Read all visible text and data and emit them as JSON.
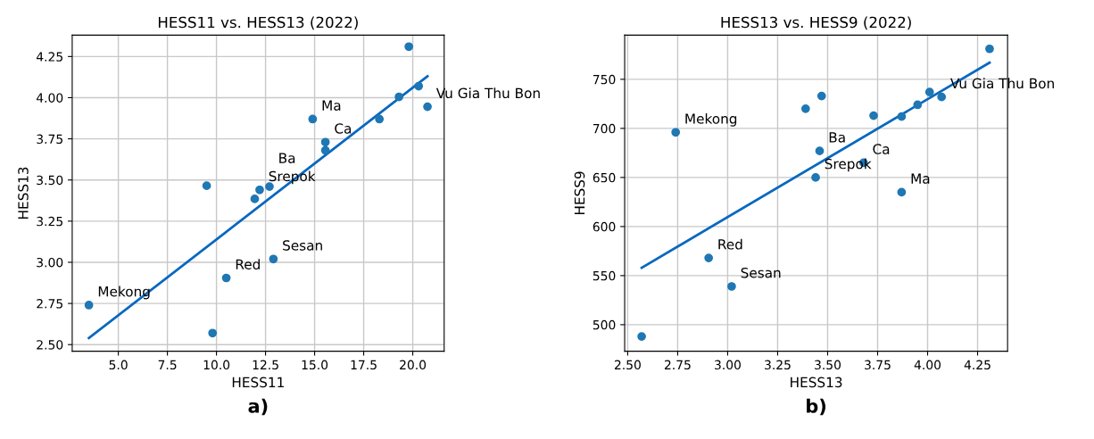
{
  "chart_data": [
    {
      "type": "scatter",
      "title": "HESS11 vs. HESS13 (2022)",
      "xlabel": "HESS11",
      "ylabel": "HESS13",
      "grid": true,
      "marker": "circle",
      "xlim": [
        2.65,
        21.6
      ],
      "ylim": [
        2.46,
        4.38
      ],
      "xticks": [
        {
          "value": 5,
          "label": "5.0"
        },
        7.5,
        {
          "value": 10,
          "label": "10.0"
        },
        12.5,
        {
          "value": 15,
          "label": "15.0"
        },
        17.5,
        {
          "value": 20,
          "label": "20.0"
        }
      ],
      "yticks": [
        {
          "value": 2.5,
          "label": "2.50"
        },
        {
          "value": 2.75,
          "label": "2.75"
        },
        {
          "value": 3.0,
          "label": "3.00"
        },
        {
          "value": 3.25,
          "label": "3.25"
        },
        {
          "value": 3.5,
          "label": "3.50"
        },
        {
          "value": 3.75,
          "label": "3.75"
        },
        {
          "value": 4.0,
          "label": "4.00"
        },
        {
          "value": 4.25,
          "label": "4.25"
        }
      ],
      "series": [
        {
          "color": "#1f77b4",
          "x": [
            3.5,
            9.8,
            10.5,
            12.9,
            9.5,
            11.95,
            12.2,
            12.7,
            14.9,
            15.55,
            15.55,
            18.3,
            19.3,
            19.8,
            20.3,
            20.75
          ],
          "values": [
            2.74,
            2.57,
            2.905,
            3.02,
            3.465,
            3.385,
            3.44,
            3.46,
            3.87,
            3.73,
            3.68,
            3.87,
            4.005,
            4.31,
            4.07,
            3.945
          ]
        },
        {
          "type": "line",
          "color": "#0868c0",
          "marker": "none",
          "x": [
            3.5,
            20.75
          ],
          "values": [
            2.54,
            4.13
          ]
        }
      ],
      "annotations": [
        {
          "text": "Mekong",
          "x": 3.5,
          "y": 2.74
        },
        {
          "text": "Red",
          "x": 10.5,
          "y": 2.905
        },
        {
          "text": "Sesan",
          "x": 12.9,
          "y": 3.02
        },
        {
          "text": "Srepok",
          "x": 12.2,
          "y": 3.44
        },
        {
          "text": "Ba",
          "x": 12.7,
          "y": 3.46
        },
        {
          "text": "Ma",
          "x": 14.9,
          "y": 3.87
        },
        {
          "text": "Ca",
          "x": 15.55,
          "y": 3.73
        },
        {
          "text": "Vu Gia Thu Bon",
          "x": 20.75,
          "y": 3.945
        },
        "a)"
      ]
    },
    {
      "type": "scatter",
      "title": "HESS13 vs. HESS9 (2022)",
      "xlabel": "HESS13",
      "ylabel": "HESS9",
      "grid": true,
      "marker": "circle",
      "xlim": [
        2.485,
        4.4
      ],
      "ylim": [
        473,
        795
      ],
      "xticks": [
        {
          "value": 2.5,
          "label": "2.50"
        },
        {
          "value": 2.75,
          "label": "2.75"
        },
        {
          "value": 3.0,
          "label": "3.00"
        },
        {
          "value": 3.25,
          "label": "3.25"
        },
        {
          "value": 3.5,
          "label": "3.50"
        },
        {
          "value": 3.75,
          "label": "3.75"
        },
        {
          "value": 4.0,
          "label": "4.00"
        },
        {
          "value": 4.25,
          "label": "4.25"
        }
      ],
      "yticks": [
        500,
        550,
        600,
        650,
        700,
        750
      ],
      "series": [
        {
          "color": "#1f77b4",
          "x": [
            2.57,
            2.74,
            2.905,
            3.02,
            3.39,
            3.47,
            3.46,
            3.44,
            3.68,
            3.73,
            3.87,
            3.87,
            3.95,
            4.01,
            4.07,
            4.31
          ],
          "values": [
            488,
            696,
            568,
            539,
            720,
            733,
            677,
            650,
            665,
            713,
            635,
            712,
            724,
            737,
            732,
            781
          ]
        },
        {
          "type": "line",
          "color": "#0868c0",
          "marker": "none",
          "x": [
            2.57,
            4.31
          ],
          "values": [
            558,
            767
          ]
        }
      ],
      "annotations": [
        {
          "text": "Mekong",
          "x": 2.74,
          "y": 696
        },
        {
          "text": "Red",
          "x": 2.905,
          "y": 568
        },
        {
          "text": "Sesan",
          "x": 3.02,
          "y": 539
        },
        {
          "text": "Srepok",
          "x": 3.44,
          "y": 650
        },
        {
          "text": "Ba",
          "x": 3.46,
          "y": 677
        },
        {
          "text": "Ma",
          "x": 3.87,
          "y": 635
        },
        {
          "text": "Ca",
          "x": 3.68,
          "y": 665
        },
        {
          "text": "Vu Gia Thu Bon",
          "x": 4.07,
          "y": 732
        },
        "b)"
      ]
    }
  ]
}
